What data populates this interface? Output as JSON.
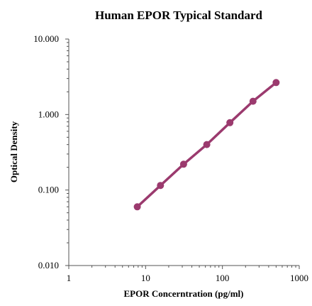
{
  "chart_data": {
    "type": "line",
    "title": "Human EPOR Typical Standard",
    "xlabel": "EPOR Concerntration (pg/ml)",
    "ylabel": "Optical Density",
    "xscale": "log",
    "yscale": "log",
    "xlim": [
      1,
      1000
    ],
    "ylim": [
      0.01,
      10
    ],
    "x_tick_labels": [
      "1",
      "10",
      "100",
      "1000"
    ],
    "y_tick_labels": [
      "0.010",
      "0.100",
      "1.000",
      "10.000"
    ],
    "grid": false,
    "legend": "none",
    "series": [
      {
        "color": "#9b3a6e",
        "x": [
          7.8,
          15.6,
          31.25,
          62.5,
          125,
          250,
          500
        ],
        "y": [
          0.06,
          0.115,
          0.22,
          0.4,
          0.78,
          1.5,
          2.65
        ]
      }
    ]
  }
}
